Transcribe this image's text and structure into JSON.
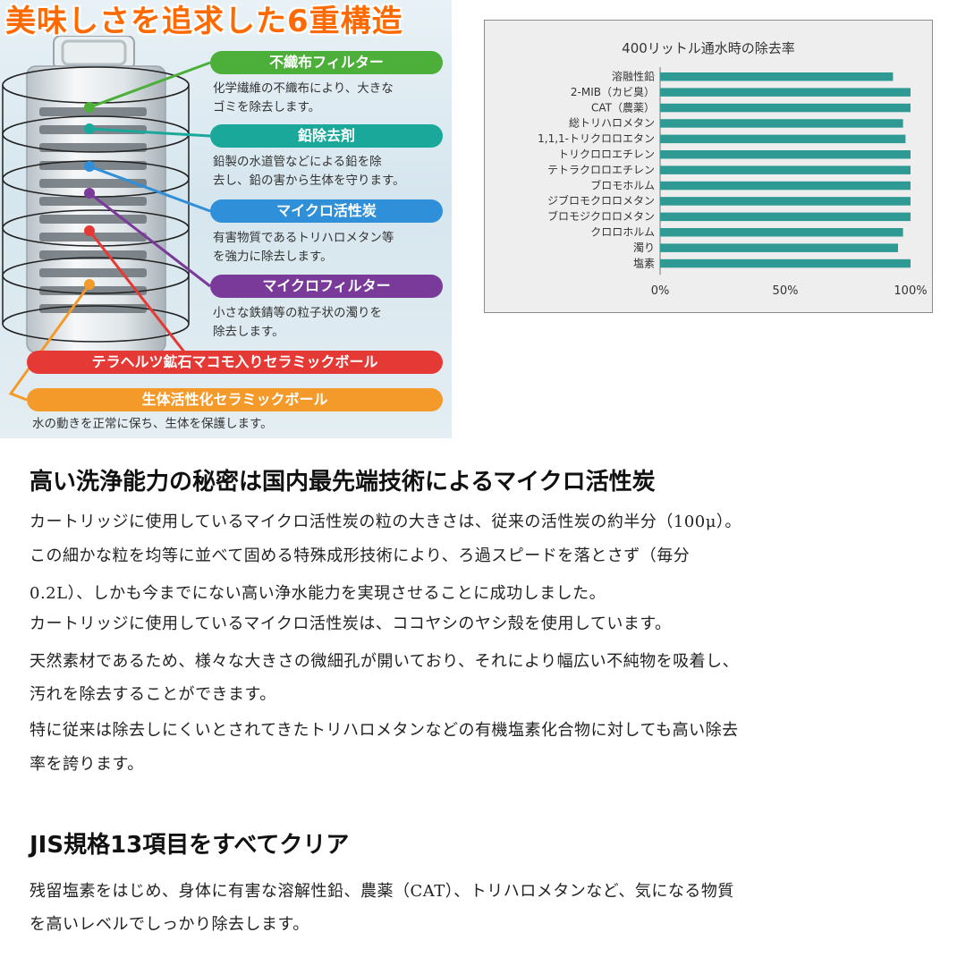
{
  "infographic": {
    "headline": "美味しさを追求した6重構造",
    "layers": [
      {
        "title": "不織布フィルター",
        "color": "#4caf3a",
        "desc": [
          "化学繊維の不織布により、大きな",
          "ゴミを除去します。"
        ]
      },
      {
        "title": "鉛除去剤",
        "color": "#1aa89a",
        "desc": [
          "鉛製の水道管などによる鉛を除",
          "去し、鉛の害から生体を守ります。"
        ]
      },
      {
        "title": "マイクロ活性炭",
        "color": "#2f8fd8",
        "desc": [
          "有害物質であるトリハロメタン等",
          "を強力に除去します。"
        ]
      },
      {
        "title": "マイクロフィルター",
        "color": "#7a3a9a",
        "desc": [
          "小さな鉄錆等の粒子状の濁りを",
          "除去します。"
        ]
      },
      {
        "title": "テラヘルツ鉱石マコモ入りセラミックボール",
        "color": "#e53935",
        "desc": []
      },
      {
        "title": "生体活性化セラミックボール",
        "color": "#f39a2b",
        "desc": [
          "水の動きを正常に保ち、生体を保護します。"
        ]
      }
    ]
  },
  "chart_data": {
    "type": "bar",
    "orientation": "horizontal",
    "title": "400リットル通水時の除去率",
    "categories": [
      "溶融性鉛",
      "2-MIB（カビ臭）",
      "CAT（農薬）",
      "総トリハロメタン",
      "1,1,1-トリクロロエタン",
      "トリクロロエチレン",
      "テトラクロロエチレン",
      "ブロモホルム",
      "ジブロモクロロメタン",
      "ブロモジクロロメタン",
      "クロロホルム",
      "濁り",
      "塩素"
    ],
    "values": [
      93,
      100,
      100,
      97,
      98,
      100,
      100,
      100,
      100,
      100,
      97,
      95,
      100
    ],
    "xlim": [
      0,
      100
    ],
    "x_ticks": [
      "0%",
      "50%",
      "100%"
    ],
    "bar_color": "#2f9a94",
    "grid": false
  },
  "section1": {
    "heading": "高い洗浄能力の秘密は国内最先端技術によるマイクロ活性炭",
    "lines": [
      "カートリッジに使用しているマイクロ活性炭の粒の大きさは、従来の活性炭の約半分（100μ）。",
      "この細かな粒を均等に並べて固める特殊成形技術により、ろ過スピードを落とさず（毎分",
      "0.2L）、しかも今までにない高い浄水能力を実現させることに成功しました。",
      "カートリッジに使用しているマイクロ活性炭は、ココヤシのヤシ殻を使用しています。",
      "天然素材であるため、様々な大きさの微細孔が開いており、それにより幅広い不純物を吸着し、",
      "汚れを除去することができます。",
      "特に従来は除去しにくいとされてきたトリハロメタンなどの有機塩素化合物に対しても高い除去",
      "率を誇ります。"
    ]
  },
  "section2": {
    "heading": "JIS規格13項目をすべてクリア",
    "lines": [
      "残留塩素をはじめ、身体に有害な溶解性鉛、農薬（CAT）、トリハロメタンなど、気になる物質",
      "を高いレベルでしっかり除去します。"
    ]
  }
}
